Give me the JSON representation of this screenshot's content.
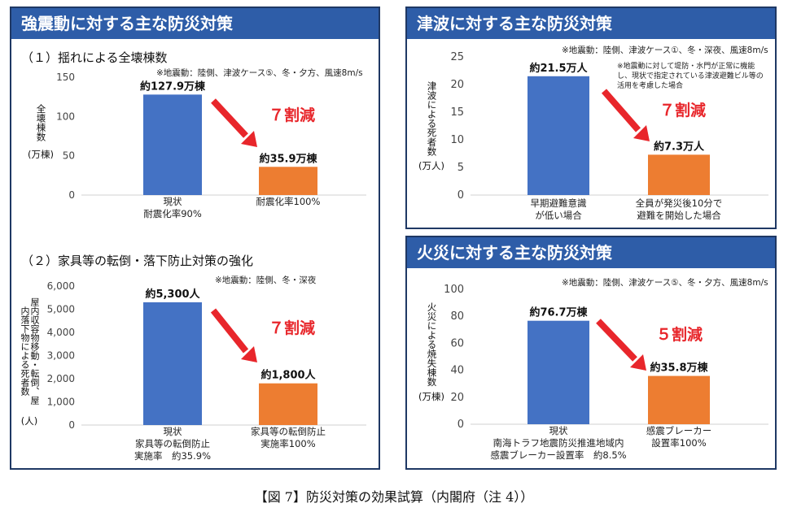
{
  "caption": "【図 7】防災対策の効果試算（内閣府（注 4））",
  "colors": {
    "header": "#2e5da8",
    "border": "#1f3864",
    "blue": "#4472c4",
    "orange": "#ed7d31",
    "red": "#e8262b"
  },
  "left_panel": {
    "title": "強震動に対する主な防災対策",
    "section1_heading": "（１）揺れによる全壊棟数",
    "section1_note": "※地震動：陸側、津波ケース⑤、冬・夕方、風速8m/s",
    "section1_ylabel_text": "全壊棟数",
    "section1_ylabel_unit": "(万棟)",
    "section1_reduction": "７割減",
    "section2_heading": "（２）家具等の転倒・落下防止対策の強化",
    "section2_note": "※地震動：陸側、冬・深夜",
    "section2_ylabel_text": "屋内収容物移動・転倒、屋内落下物による死者数",
    "section2_ylabel_unit": "(人)",
    "section2_reduction": "７割減"
  },
  "tsunami_panel": {
    "title": "津波に対する主な防災対策",
    "note": "※地震動：陸側、津波ケース①、冬・深夜、風速8m/s",
    "note2": "※地震動に対して堤防・水門が正常に機能し、現状で指定されている津波避難ビル等の活用を考慮した場合",
    "ylabel_text": "津波による死者数",
    "ylabel_unit": "(万人)",
    "reduction": "７割減"
  },
  "fire_panel": {
    "title": "火災に対する主な防災対策",
    "note": "※地震動：陸側、津波ケース⑤、冬・夕方、風速8m/s",
    "ylabel_text": "火災による焼失棟数",
    "ylabel_unit": "(万棟)",
    "reduction": "５割減"
  },
  "chart_data": [
    {
      "type": "bar",
      "title": "（１）揺れによる全壊棟数",
      "categories": [
        [
          "現状",
          "耐震化率90%"
        ],
        [
          "耐震化率100%"
        ]
      ],
      "values": [
        127.9,
        35.9
      ],
      "data_labels": [
        "約127.9万棟",
        "約35.9万棟"
      ],
      "ylabel": "全壊棟数 (万棟)",
      "ylim": [
        0,
        150
      ],
      "yticks": [
        "0",
        "50",
        "100",
        "150"
      ],
      "colors": [
        "#4472c4",
        "#ed7d31"
      ],
      "grid": false
    },
    {
      "type": "bar",
      "title": "（２）家具等の転倒・落下防止対策の強化",
      "categories": [
        [
          "現状",
          "家具等の転倒防止",
          "実施率　約35.9%"
        ],
        [
          "家具等の転倒防止",
          "実施率100%"
        ]
      ],
      "values": [
        5300,
        1800
      ],
      "data_labels": [
        "約5,300人",
        "約1,800人"
      ],
      "ylabel": "屋内収容物移動・転倒、屋内落下物による死者数 (人)",
      "ylim": [
        0,
        6000
      ],
      "yticks": [
        "0",
        "1,000",
        "2,000",
        "3,000",
        "4,000",
        "5,000",
        "6,000"
      ],
      "colors": [
        "#4472c4",
        "#ed7d31"
      ],
      "grid": false
    },
    {
      "type": "bar",
      "title": "津波に対する主な防災対策",
      "categories": [
        [
          "早期避難意識",
          "が低い場合"
        ],
        [
          "全員が発災後10分で",
          "避難を開始した場合"
        ]
      ],
      "values": [
        21.5,
        7.3
      ],
      "data_labels": [
        "約21.5万人",
        "約7.3万人"
      ],
      "ylabel": "津波による死者数 (万人)",
      "ylim": [
        0,
        25
      ],
      "yticks": [
        "0",
        "5",
        "10",
        "15",
        "20",
        "25"
      ],
      "colors": [
        "#4472c4",
        "#ed7d31"
      ],
      "grid": false
    },
    {
      "type": "bar",
      "title": "火災に対する主な防災対策",
      "categories": [
        [
          "現状",
          "南海トラフ地震防災推進地域内",
          "感震ブレーカー設置率　約8.5%"
        ],
        [
          "感震ブレーカー",
          "設置率100%"
        ]
      ],
      "values": [
        76.7,
        35.8
      ],
      "data_labels": [
        "約76.7万棟",
        "約35.8万棟"
      ],
      "ylabel": "火災による焼失棟数 (万棟)",
      "ylim": [
        0,
        100
      ],
      "yticks": [
        "0",
        "20",
        "40",
        "60",
        "80",
        "100"
      ],
      "colors": [
        "#4472c4",
        "#ed7d31"
      ],
      "grid": false
    }
  ]
}
